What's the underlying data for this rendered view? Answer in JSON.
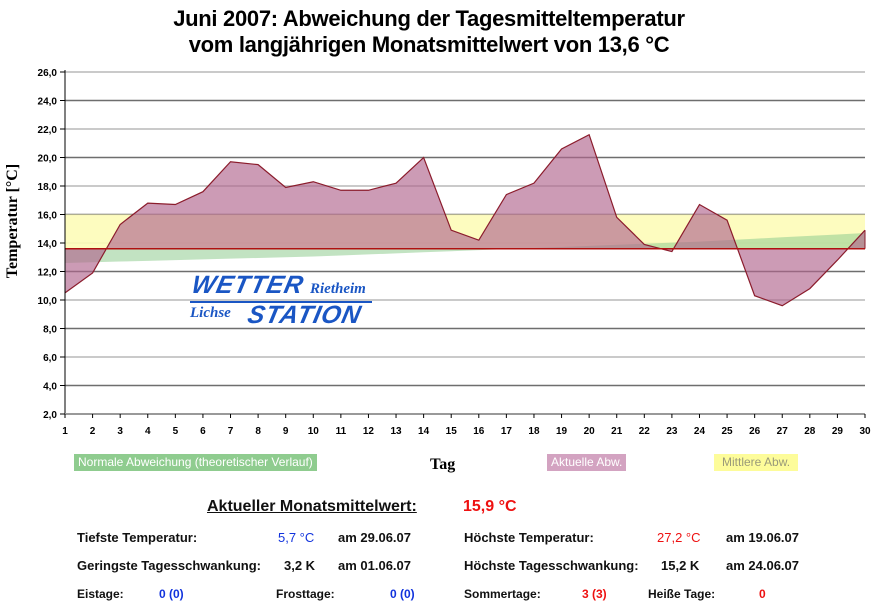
{
  "chart_data": {
    "type": "area",
    "title": "Juni 2007: Abweichung der Tagesmitteltemperatur",
    "subtitle": "vom langjährigen Monatsmittelwert von 13,6 °C",
    "xlabel": "Tag",
    "ylabel": "Temperatur [°C]",
    "ylim": [
      2.0,
      26.0
    ],
    "xlim": [
      1,
      30
    ],
    "grid": true,
    "baseline": 13.6,
    "y_ticks": [
      "2,0",
      "4,0",
      "6,0",
      "8,0",
      "10,0",
      "12,0",
      "14,0",
      "16,0",
      "18,0",
      "20,0",
      "22,0",
      "24,0",
      "26,0"
    ],
    "y_tick_values": [
      2,
      4,
      6,
      8,
      10,
      12,
      14,
      16,
      18,
      20,
      22,
      24,
      26
    ],
    "x": [
      1,
      2,
      3,
      4,
      5,
      6,
      7,
      8,
      9,
      10,
      11,
      12,
      13,
      14,
      15,
      16,
      17,
      18,
      19,
      20,
      21,
      22,
      23,
      24,
      25,
      26,
      27,
      28,
      29,
      30
    ],
    "series": [
      {
        "name": "Aktuelle Abw.",
        "color": "#c68aa8",
        "line_color": "#8b1c2c",
        "values": [
          10.5,
          11.9,
          15.3,
          16.8,
          16.7,
          17.6,
          19.7,
          19.5,
          17.9,
          18.3,
          17.7,
          17.7,
          18.2,
          20.0,
          14.9,
          14.2,
          17.4,
          18.2,
          20.6,
          21.6,
          15.8,
          13.9,
          13.4,
          16.7,
          15.6,
          10.3,
          9.6,
          10.8,
          12.8,
          14.9
        ]
      },
      {
        "name": "Normale Abweichung (theoretischer Verlauf)",
        "color": "#8fcc8f",
        "values": [
          12.6,
          12.65,
          12.7,
          12.75,
          12.8,
          12.85,
          12.9,
          12.95,
          13.0,
          13.05,
          13.12,
          13.2,
          13.27,
          13.35,
          13.42,
          13.5,
          13.57,
          13.65,
          13.72,
          13.8,
          13.88,
          13.95,
          14.03,
          14.1,
          14.2,
          14.3,
          14.4,
          14.5,
          14.6,
          14.7
        ]
      },
      {
        "name": "Mittlere Abw.",
        "color": "#fdfcb8",
        "range": [
          13.6,
          16.0
        ]
      }
    ],
    "legend": [
      "Normale Abweichung (theoretischer Verlauf)",
      "Aktuelle Abw.",
      "Mittlere Abw."
    ],
    "legend_position": "bottom"
  },
  "logo": {
    "line1": "WETTER",
    "line1_small": "Rietheim",
    "line2_small": "Lichse",
    "line2": "STATION"
  },
  "stats": {
    "monthly_mean_label": "Aktueller Monatsmittelwert:",
    "monthly_mean_value": "15,9 °C",
    "min_temp_label": "Tiefste Temperatur:",
    "min_temp_value": "5,7 °C",
    "min_temp_date": "am 29.06.07",
    "max_temp_label": "Höchste Temperatur:",
    "max_temp_value": "27,2 °C",
    "max_temp_date": "am 19.06.07",
    "min_range_label": "Geringste Tagesschwankung:",
    "min_range_value": "3,2 K",
    "min_range_date": "am 01.06.07",
    "max_range_label": "Höchste Tagesschwankung:",
    "max_range_value": "15,2 K",
    "max_range_date": "am 24.06.07",
    "ice_days_label": "Eistage:",
    "ice_days_value": "0 (0)",
    "frost_days_label": "Frosttage:",
    "frost_days_value": "0 (0)",
    "summer_days_label": "Sommertage:",
    "summer_days_value": "3 (3)",
    "hot_days_label": "Heiße Tage:",
    "hot_days_value": "0"
  }
}
